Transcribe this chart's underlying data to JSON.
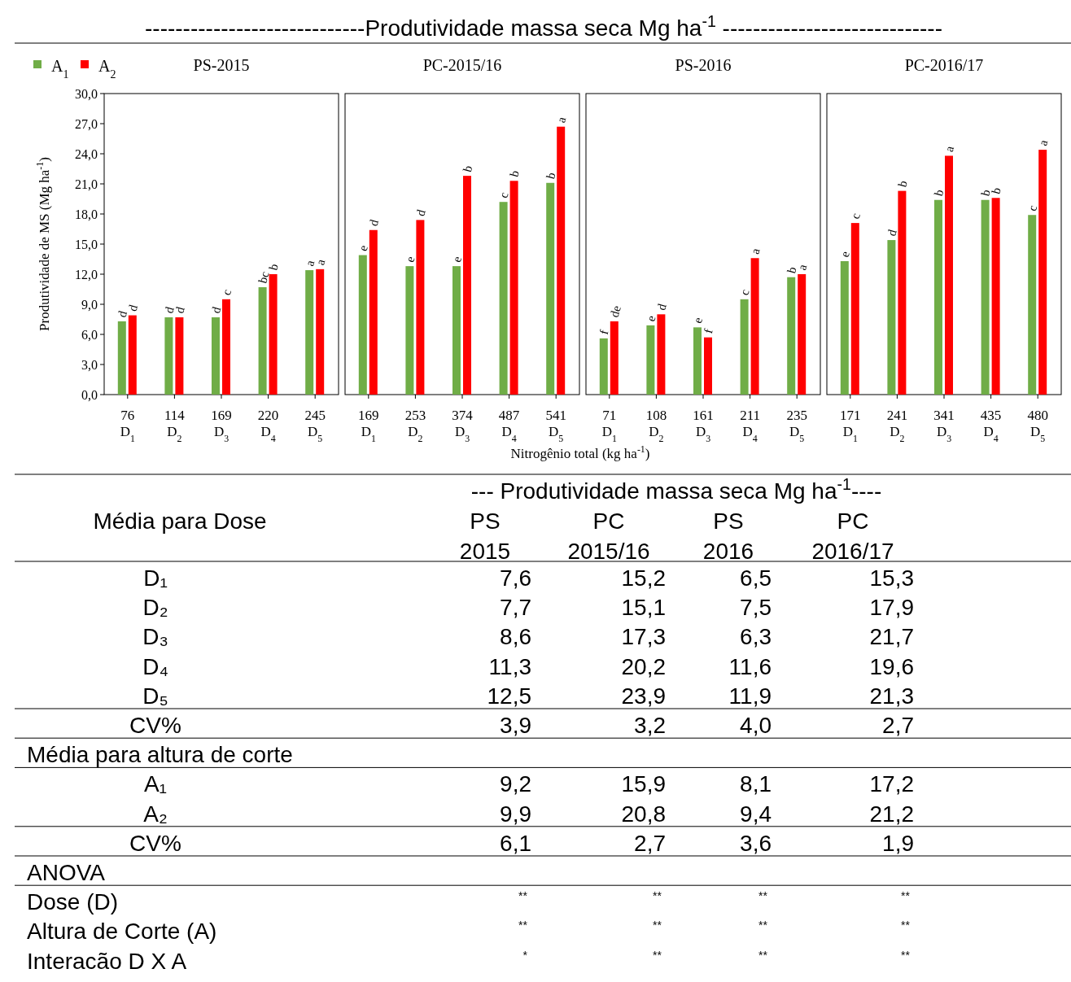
{
  "chart_data": [
    {
      "type": "bar",
      "title": "-----------------------------Produtividade massa seca Mg ha$^{-1}$ -----------------------------",
      "subtitle": "PS-2015",
      "ylabel": "Produtividade de MS (Mg ha$^{-1}$)",
      "legend": "top left",
      "categories": [
        "76\nD$_{1}$",
        "114\nD$_{2}$",
        "169\nD$_{3}$",
        "220\nD$_{4}$",
        "245\nD$_{5}$"
      ],
      "ylim": [
        0,
        30
      ],
      "yticks": [
        {
          "value": 0,
          "label": "0,0"
        },
        {
          "value": 3,
          "label": "3,0"
        },
        {
          "value": 6,
          "label": "6,0"
        },
        {
          "value": 9,
          "label": "9,0"
        },
        {
          "value": 12,
          "label": "12,0"
        },
        {
          "value": 15,
          "label": "15,0"
        },
        {
          "value": 18,
          "label": "18,0"
        },
        {
          "value": 21,
          "label": "21,0"
        },
        {
          "value": 24,
          "label": "24,0"
        },
        {
          "value": 27,
          "label": "27,0"
        },
        {
          "value": 30,
          "label": "30,0"
        }
      ],
      "series": [
        {
          "name": "A$_{1}$",
          "color": "#70ad47",
          "values": [
            7.3,
            7.7,
            7.7,
            10.7,
            12.4
          ],
          "value_labels": [
            "d",
            "d",
            "d",
            "bc",
            "a"
          ]
        },
        {
          "name": "A$_{2}$",
          "color": "#ff0000",
          "values": [
            7.9,
            7.7,
            9.5,
            12.0,
            12.5
          ],
          "value_labels": [
            "d",
            "d",
            "c",
            "b",
            "a"
          ]
        }
      ]
    },
    {
      "type": "bar",
      "subtitle": "PC-2015/16",
      "tick_labels": "x",
      "categories": [
        "169\nD$_{1}$",
        "253\nD$_{2}$",
        "374\nD$_{3}$",
        "487\nD$_{4}$",
        "541\nD$_{5}$"
      ],
      "ylim": [
        0,
        30
      ],
      "series": [
        {
          "color": "#70ad47",
          "values": [
            13.9,
            12.8,
            12.8,
            19.2,
            21.1
          ],
          "value_labels": [
            "e",
            "e",
            "e",
            "c",
            "b"
          ]
        },
        {
          "color": "#ff0000",
          "values": [
            16.4,
            17.4,
            21.8,
            21.3,
            26.7
          ],
          "value_labels": [
            "d",
            "d",
            "b",
            "b",
            "a"
          ]
        }
      ]
    },
    {
      "type": "bar",
      "subtitle": "PS-2016",
      "tick_labels": "x",
      "xlabel": "Nitrogênio total  (kg ha$^{-1}$)",
      "categories": [
        "71\nD$_{1}$",
        "108\nD$_{2}$",
        "161\nD$_{3}$",
        "211\nD$_{4}$",
        "235\nD$_{5}$"
      ],
      "ylim": [
        0,
        30
      ],
      "series": [
        {
          "color": "#70ad47",
          "values": [
            5.6,
            6.9,
            6.7,
            9.5,
            11.7
          ],
          "value_labels": [
            "f",
            "e",
            "e",
            "c",
            "b"
          ]
        },
        {
          "color": "#ff0000",
          "values": [
            7.3,
            8.0,
            5.7,
            13.6,
            12.0
          ],
          "value_labels": [
            "de",
            "d",
            "f",
            "a",
            "a"
          ]
        }
      ]
    },
    {
      "type": "bar",
      "subtitle": "PC-2016/17",
      "tick_labels": "x",
      "categories": [
        "171\nD$_{1}$",
        "241\nD$_{2}$",
        "341\nD$_{3}$",
        "435\nD$_{4}$",
        "480\nD$_{5}$"
      ],
      "ylim": [
        0,
        30
      ],
      "series": [
        {
          "color": "#70ad47",
          "values": [
            13.3,
            15.4,
            19.4,
            19.4,
            17.9
          ],
          "value_labels": [
            "e",
            "d",
            "b",
            "b",
            "c"
          ]
        },
        {
          "color": "#ff0000",
          "values": [
            17.1,
            20.3,
            23.8,
            19.6,
            24.4
          ],
          "value_labels": [
            "c",
            "b",
            "a",
            "b",
            "a"
          ]
        }
      ]
    },
    {
      "type": "other",
      "title": "--- Produtividade massa seca Mg ha$^{-1}$----",
      "ylabel": "Média para Dose",
      "categories": [
        "D₁",
        "D₂",
        "D₃",
        "D₄",
        "D₅",
        "CV%",
        "Média para altura de corte",
        "A₁",
        "A₂",
        "CV%",
        "ANOVA",
        "Dose (D)",
        "Altura de Corte (A)",
        "Interacão D X A"
      ],
      "annotations": [
        "PS\n2015",
        "PC\n2015/16",
        "PS\n2016",
        "PC\n2016/17",
        "7,6",
        "15,2",
        "6,5",
        "15,3",
        "7,7",
        "15,1",
        "7,5",
        "17,9",
        "8,6",
        "17,3",
        "6,3",
        "21,7",
        "11,3",
        "20,2",
        "11,6",
        "19,6",
        "12,5",
        "23,9",
        "11,9",
        "21,3",
        "3,9",
        "3,2",
        "4,0",
        "2,7",
        "9,2",
        "15,9",
        "8,1",
        "17,2",
        "9,9",
        "20,8",
        "9,4",
        "21,2",
        "6,1",
        "2,7",
        "3,6",
        "1,9",
        "**",
        "**",
        "**",
        "**",
        "**",
        "**",
        "**",
        "**",
        "*",
        "**",
        "**",
        "**"
      ]
    }
  ]
}
